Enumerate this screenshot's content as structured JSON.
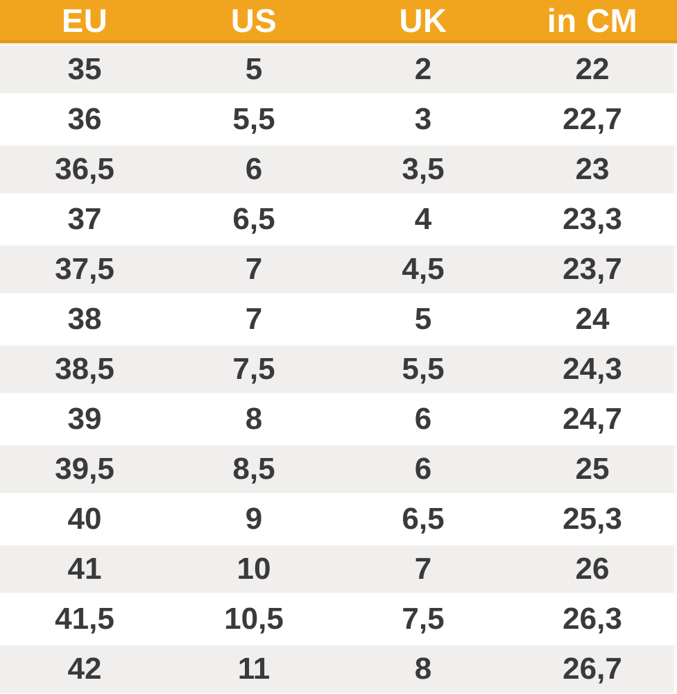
{
  "chart_data": {
    "type": "table",
    "columns": [
      "EU",
      "US",
      "UK",
      "in CM"
    ],
    "rows": [
      [
        "35",
        "5",
        "2",
        "22"
      ],
      [
        "36",
        "5,5",
        "3",
        "22,7"
      ],
      [
        "36,5",
        "6",
        "3,5",
        "23"
      ],
      [
        "37",
        "6,5",
        "4",
        "23,3"
      ],
      [
        "37,5",
        "7",
        "4,5",
        "23,7"
      ],
      [
        "38",
        "7",
        "5",
        "24"
      ],
      [
        "38,5",
        "7,5",
        "5,5",
        "24,3"
      ],
      [
        "39",
        "8",
        "6",
        "24,7"
      ],
      [
        "39,5",
        "8,5",
        "6",
        "25"
      ],
      [
        "40",
        "9",
        "6,5",
        "25,3"
      ],
      [
        "41",
        "10",
        "7",
        "26"
      ],
      [
        "41,5",
        "10,5",
        "7,5",
        "26,3"
      ],
      [
        "42",
        "11",
        "8",
        "26,7"
      ]
    ],
    "layout": {
      "columns_equal_width": true,
      "alternating_rows": "odd rows shaded",
      "decimal_separator": ","
    },
    "colors": {
      "header_bg": "#f1a51f",
      "header_text": "#fefefc",
      "row_shaded_bg": "#f0efed",
      "row_plain_bg": "#ffffff",
      "cell_text": "#3a393b"
    }
  }
}
